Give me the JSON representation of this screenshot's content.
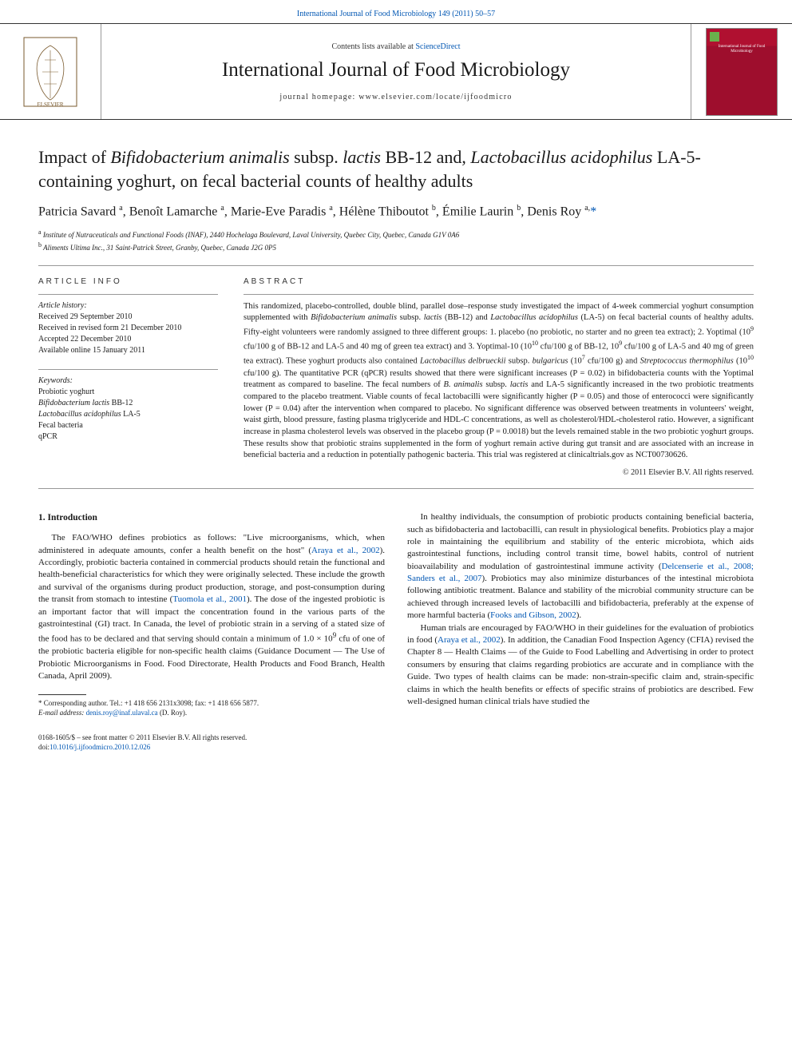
{
  "top_link": {
    "prefix": "",
    "journal_ref": "International Journal of Food Microbiology 149 (2011) 50–57"
  },
  "header": {
    "contents_prefix": "Contents lists available at ",
    "contents_link": "ScienceDirect",
    "journal_title": "International Journal of Food Microbiology",
    "homepage_prefix": "journal homepage: ",
    "homepage_url": "www.elsevier.com/locate/ijfoodmicro",
    "cover_caption": "International Journal of Food Microbiology"
  },
  "article": {
    "title_html": "Impact of <span class='ital'>Bifidobacterium animalis</span> subsp. <span class='ital'>lactis</span> BB-12 and, <span class='ital'>Lactobacillus acidophilus</span> LA-5-containing yoghurt, on fecal bacterial counts of healthy adults",
    "authors_html": "Patricia Savard <sup>a</sup>, Benoît Lamarche <sup>a</sup>, Marie-Eve Paradis <sup>a</sup>, Hélène Thiboutot <sup>b</sup>, Émilie Laurin <sup>b</sup>, Denis Roy <sup>a,</sup><a href='#'>*</a>",
    "affiliations": [
      {
        "sup": "a",
        "text": "Institute of Nutraceuticals and Functional Foods (INAF), 2440 Hochelaga Boulevard, Laval University, Quebec City, Quebec, Canada G1V 0A6"
      },
      {
        "sup": "b",
        "text": "Aliments Ultima Inc., 31 Saint-Patrick Street, Granby, Quebec, Canada J2G 0P5"
      }
    ]
  },
  "info": {
    "heading": "ARTICLE INFO",
    "history_label": "Article history:",
    "history_lines": [
      "Received 29 September 2010",
      "Received in revised form 21 December 2010",
      "Accepted 22 December 2010",
      "Available online 15 January 2011"
    ],
    "keywords_label": "Keywords:",
    "keywords_html": "Probiotic yoghurt<br><span class='ital'>Bifidobacterium lactis</span> BB-12<br><span class='ital'>Lactobacillus acidophilus</span> LA-5<br>Fecal bacteria<br>qPCR"
  },
  "abstract": {
    "heading": "ABSTRACT",
    "body_html": "This randomized, placebo-controlled, double blind, parallel dose–response study investigated the impact of 4-week commercial yoghurt consumption supplemented with <span class='ital'>Bifidobacterium animalis</span> subsp. <span class='ital'>lactis</span> (BB-12) and <span class='ital'>Lactobacillus acidophilus</span> (LA-5) on fecal bacterial counts of healthy adults. Fifty-eight volunteers were randomly assigned to three different groups: 1. placebo (no probiotic, no starter and no green tea extract); 2. Yoptimal (10<sup>9</sup> cfu/100 g of BB-12 and LA-5 and 40 mg of green tea extract) and 3. Yoptimal-10 (10<sup>10</sup> cfu/100 g of BB-12, 10<sup>9</sup> cfu/100 g of LA-5 and 40 mg of green tea extract). These yoghurt products also contained <span class='ital'>Lactobacillus delbrueckii</span> subsp. <span class='ital'>bulgaricus</span> (10<sup>7</sup> cfu/100 g) and <span class='ital'>Streptococcus thermophilus</span> (10<sup>10</sup> cfu/100 g). The quantitative PCR (qPCR) results showed that there were significant increases (P = 0.02) in bifidobacteria counts with the Yoptimal treatment as compared to baseline. The fecal numbers of <span class='ital'>B. animalis</span> subsp. <span class='ital'>lactis</span> and LA-5 significantly increased in the two probiotic treatments compared to the placebo treatment. Viable counts of fecal lactobacilli were significantly higher (P = 0.05) and those of enterococci were significantly lower (P = 0.04) after the intervention when compared to placebo. No significant difference was observed between treatments in volunteers' weight, waist girth, blood pressure, fasting plasma triglyceride and HDL-C concentrations, as well as cholesterol/HDL-cholesterol ratio. However, a significant increase in plasma cholesterol levels was observed in the placebo group (P = 0.0018) but the levels remained stable in the two probiotic yoghurt groups. These results show that probiotic strains supplemented in the form of yoghurt remain active during gut transit and are associated with an increase in beneficial bacteria and a reduction in potentially pathogenic bacteria. This trial was registered at clinicaltrials.gov as NCT00730626.",
    "copyright": "© 2011 Elsevier B.V. All rights reserved."
  },
  "body": {
    "intro_heading": "1. Introduction",
    "p1_html": "The FAO/WHO defines probiotics as follows: \"Live microorganisms, which, when administered in adequate amounts, confer a health benefit on the host\" (<a href='#'>Araya et al., 2002</a>). Accordingly, probiotic bacteria contained in commercial products should retain the functional and health-beneficial characteristics for which they were originally selected. These include the growth and survival of the organisms during product production, storage, and post-consumption during the transit from stomach to intestine (<a href='#'>Tuomola et al., 2001</a>). The dose of the ingested probiotic is an important factor that will impact the concentration found in the various parts of the gastrointestinal (GI) tract. In Canada, the level of probiotic strain in a serving of a stated size of the food has to be declared and that serving should contain a minimum of 1.0 × 10<sup>9</sup> cfu of one of the probiotic bacteria eligible for non-specific health claims (Guidance Document — The Use of Probiotic Microorganisms in Food. Food Directorate, Health Products and Food Branch, Health Canada, April 2009).",
    "p2_html": "In healthy individuals, the consumption of probiotic products containing beneficial bacteria, such as bifidobacteria and lactobacilli, can result in physiological benefits. Probiotics play a major role in maintaining the equilibrium and stability of the enteric microbiota, which aids gastrointestinal functions, including control transit time, bowel habits, control of nutrient bioavailability and modulation of gastrointestinal immune activity (<a href='#'>Delcenserie et al., 2008; Sanders et al., 2007</a>). Probiotics may also minimize disturbances of the intestinal microbiota following antibiotic treatment. Balance and stability of the microbial community structure can be achieved through increased levels of lactobacilli and bifidobacteria, preferably at the expense of more harmful bacteria (<a href='#'>Fooks and Gibson, 2002</a>).",
    "p3_html": "Human trials are encouraged by FAO/WHO in their guidelines for the evaluation of probiotics in food (<a href='#'>Araya et al., 2002</a>). In addition, the Canadian Food Inspection Agency (CFIA) revised the Chapter 8 — Health Claims — of the Guide to Food Labelling and Advertising in order to protect consumers by ensuring that claims regarding probiotics are accurate and in compliance with the Guide. Two types of health claims can be made: non-strain-specific claim and, strain-specific claims in which the health benefits or effects of specific strains of probiotics are described. Few well-designed human clinical trials have studied the"
  },
  "footnotes": {
    "corr_html": "* Corresponding author. Tel.: +1 418 656 2131x3098; fax: +1 418 656 5877.",
    "email_label": "E-mail address:",
    "email": "denis.roy@inaf.ulaval.ca",
    "email_suffix": "(D. Roy)."
  },
  "bottom": {
    "line1": "0168-1605/$ – see front matter © 2011 Elsevier B.V. All rights reserved.",
    "doi_prefix": "doi:",
    "doi": "10.1016/j.ijfoodmicro.2010.12.026"
  },
  "colors": {
    "link": "#0056b3",
    "text": "#1a1a1a",
    "rule": "#999999",
    "cover_bg": "#9e0e2d"
  }
}
